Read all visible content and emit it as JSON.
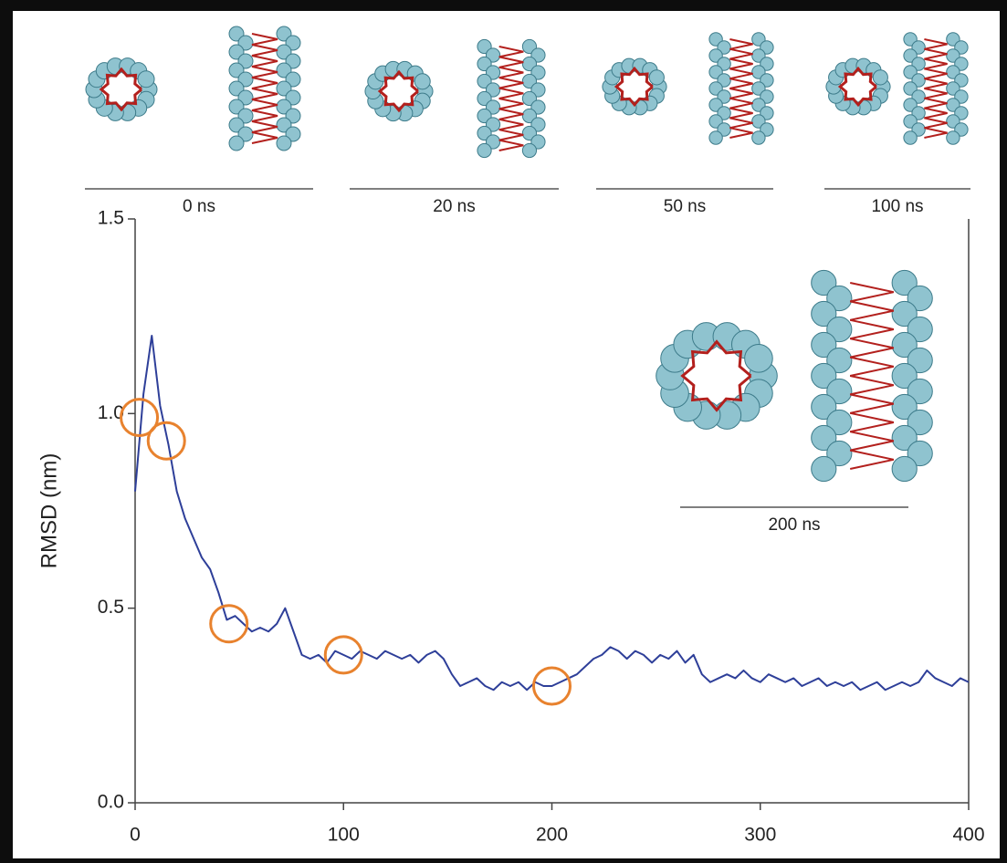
{
  "chart_data": {
    "type": "line",
    "y_label": "RMSD (nm)",
    "xlim": [
      0,
      400
    ],
    "xticks": [
      0,
      100,
      200,
      300,
      400
    ],
    "ylim": [
      0,
      1.5
    ],
    "yticks": [
      {
        "value": 0,
        "label": "0.0"
      },
      {
        "value": 0.5,
        "label": "0.5"
      },
      {
        "value": 1,
        "label": "1.0"
      },
      {
        "value": 1.5,
        "label": "1.5"
      }
    ],
    "x": [
      0,
      4,
      8,
      12,
      16,
      20,
      24,
      28,
      32,
      36,
      40,
      44,
      48,
      52,
      56,
      60,
      64,
      68,
      72,
      76,
      80,
      84,
      88,
      92,
      96,
      100,
      104,
      108,
      112,
      116,
      120,
      124,
      128,
      132,
      136,
      140,
      144,
      148,
      152,
      156,
      160,
      164,
      168,
      172,
      176,
      180,
      184,
      188,
      192,
      196,
      200,
      204,
      208,
      212,
      216,
      220,
      224,
      228,
      232,
      236,
      240,
      244,
      248,
      252,
      256,
      260,
      264,
      268,
      272,
      276,
      280,
      284,
      288,
      292,
      296,
      300,
      304,
      308,
      312,
      316,
      320,
      324,
      328,
      332,
      336,
      340,
      344,
      348,
      352,
      356,
      360,
      364,
      368,
      372,
      376,
      380,
      384,
      388,
      392,
      396,
      400
    ],
    "values": [
      0.8,
      1.05,
      1.2,
      1.02,
      0.92,
      0.8,
      0.73,
      0.68,
      0.63,
      0.6,
      0.54,
      0.47,
      0.48,
      0.46,
      0.44,
      0.45,
      0.44,
      0.46,
      0.5,
      0.44,
      0.38,
      0.37,
      0.38,
      0.36,
      0.39,
      0.38,
      0.37,
      0.39,
      0.38,
      0.37,
      0.39,
      0.38,
      0.37,
      0.38,
      0.36,
      0.38,
      0.39,
      0.37,
      0.33,
      0.3,
      0.31,
      0.32,
      0.3,
      0.29,
      0.31,
      0.3,
      0.31,
      0.29,
      0.31,
      0.3,
      0.3,
      0.31,
      0.32,
      0.33,
      0.35,
      0.37,
      0.38,
      0.4,
      0.39,
      0.37,
      0.39,
      0.38,
      0.36,
      0.38,
      0.37,
      0.39,
      0.36,
      0.38,
      0.33,
      0.31,
      0.32,
      0.33,
      0.32,
      0.34,
      0.32,
      0.31,
      0.33,
      0.32,
      0.31,
      0.32,
      0.3,
      0.31,
      0.32,
      0.3,
      0.31,
      0.3,
      0.31,
      0.29,
      0.3,
      0.31,
      0.29,
      0.3,
      0.31,
      0.3,
      0.31,
      0.34,
      0.32,
      0.31,
      0.3,
      0.32,
      0.31
    ],
    "color": "#2e3f99",
    "highlight_points": {
      "x": [
        2,
        15,
        45,
        100,
        200
      ],
      "values": [
        0.99,
        0.93,
        0.46,
        0.38,
        0.3
      ],
      "color": "#e8822e"
    },
    "snapshots": [
      {
        "label": "0 ns"
      },
      {
        "label": "20 ns"
      },
      {
        "label": "50 ns"
      },
      {
        "label": "100 ns"
      },
      {
        "label": "200 ns"
      }
    ]
  }
}
